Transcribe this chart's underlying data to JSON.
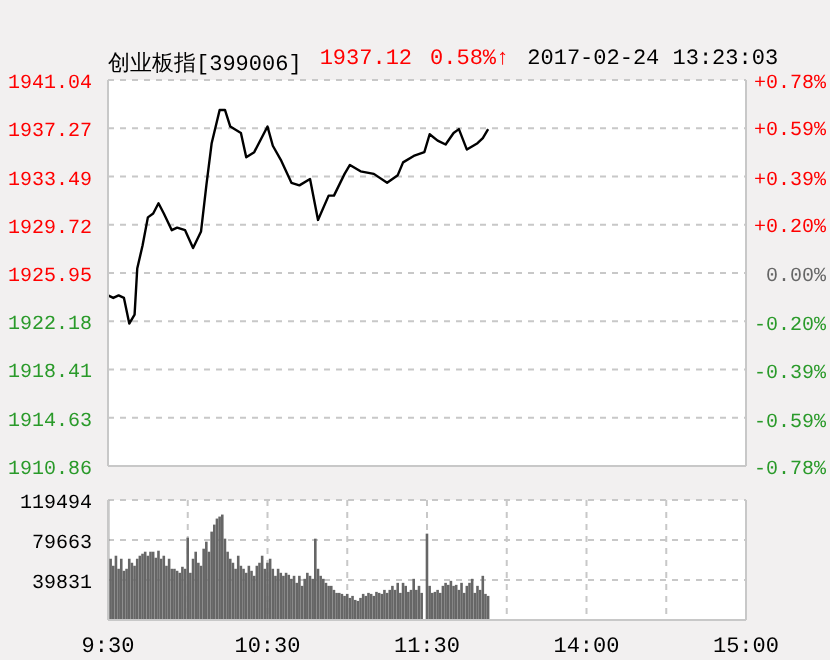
{
  "chart_data": [
    {
      "type": "line",
      "title": "创业板指[399006]",
      "annotations": [
        "1937.12",
        "0.58%↑",
        "2017-02-24 13:23:03"
      ],
      "categories": [
        null,
        null,
        null,
        null,
        null,
        null,
        null,
        null,
        null,
        null,
        null,
        null,
        null,
        null,
        null,
        null,
        null,
        null,
        null,
        null,
        null,
        null,
        null,
        null,
        null,
        null,
        null,
        null,
        null,
        null,
        null,
        null,
        null,
        null,
        null,
        null,
        null,
        null,
        null,
        null,
        null,
        null,
        null,
        null,
        null,
        null,
        null,
        null,
        null,
        null,
        null,
        null,
        null,
        null,
        null,
        null,
        null,
        null,
        null,
        null,
        null,
        null,
        null,
        null,
        null,
        null,
        null,
        null,
        null,
        null,
        null,
        null,
        null,
        null,
        null,
        null,
        null,
        null,
        null,
        null,
        null,
        null,
        null,
        null,
        null,
        null,
        null,
        null,
        null,
        null,
        null,
        null,
        null,
        null,
        null,
        null,
        null,
        null,
        null,
        null,
        null,
        null,
        null,
        null,
        null,
        null,
        null,
        null,
        null,
        null,
        null,
        null,
        null,
        null,
        null,
        null,
        null,
        null,
        null,
        null,
        null,
        null,
        null,
        null,
        null,
        null,
        null,
        null,
        null,
        null,
        null,
        null,
        null,
        null,
        null,
        null,
        null,
        null,
        null,
        null,
        null,
        null,
        null,
        null,
        null,
        null,
        null,
        null,
        null,
        null,
        null,
        null,
        null,
        null,
        null,
        null,
        null,
        null,
        null,
        null,
        null,
        null,
        null,
        null,
        null,
        null,
        null,
        null,
        null,
        null,
        null,
        null,
        null,
        null,
        null,
        null,
        null,
        null,
        null,
        null,
        null,
        null,
        null,
        null,
        null,
        null,
        null,
        null,
        null,
        null,
        null,
        null,
        null,
        null,
        null,
        null,
        null,
        null,
        null,
        null,
        null,
        null,
        null,
        null,
        null,
        null,
        null,
        null,
        null,
        null,
        null,
        null,
        null,
        null,
        null,
        null,
        null,
        null,
        null,
        null,
        null,
        null,
        null,
        null,
        null,
        null,
        null,
        null,
        null,
        null,
        null,
        null,
        null,
        null,
        null,
        null,
        null,
        null,
        null,
        null,
        null
      ],
      "series": [
        {
          "color": "#000000",
          "values": [
            1924.2,
            null,
            1924.0,
            null,
            1924.2,
            null,
            1924.0,
            null,
            1922.0,
            null,
            1922.7,
            1926.3,
            null,
            1928.1,
            null,
            1930.3,
            null,
            1930.6,
            null,
            1931.4,
            null,
            1930.6,
            null,
            null,
            1929.3,
            null,
            1929.5,
            null,
            null,
            1929.3,
            null,
            null,
            1927.9,
            null,
            null,
            1929.2,
            null,
            1932.8,
            null,
            1936.1,
            null,
            null,
            1938.7,
            null,
            1938.7,
            null,
            1937.4,
            null,
            null,
            null,
            1936.9,
            null,
            1935.0,
            null,
            null,
            1935.4,
            null,
            null,
            null,
            null,
            1937.4,
            null,
            1935.9,
            null,
            null,
            1934.8,
            null,
            null,
            null,
            1933.0,
            null,
            null,
            1932.8,
            null,
            null,
            null,
            1933.3,
            null,
            null,
            1930.1,
            null,
            null,
            null,
            1932.0,
            null,
            1932.0,
            null,
            null,
            null,
            1933.7,
            null,
            1934.4,
            null,
            null,
            null,
            1933.9,
            null,
            null,
            null,
            null,
            1933.7,
            null,
            null,
            null,
            null,
            1933.0,
            null,
            null,
            null,
            1933.6,
            null,
            1934.6,
            null,
            null,
            null,
            1935.1,
            null,
            null,
            null,
            1935.4,
            null,
            1936.8,
            null,
            null,
            1936.3,
            null,
            null,
            1936.0,
            null,
            null,
            1936.9,
            null,
            1937.2,
            null,
            null,
            1935.6,
            null,
            null,
            null,
            1936.1,
            null,
            1936.5,
            null,
            1937.2,
            null,
            null,
            null,
            null,
            null,
            null,
            null,
            null,
            null,
            null,
            null,
            null,
            null,
            null,
            null,
            null,
            null,
            null,
            null,
            null,
            null,
            null,
            null,
            null,
            null,
            null,
            null,
            null,
            null,
            null,
            null,
            null,
            null,
            null,
            null,
            null,
            null,
            null,
            null,
            null,
            null,
            null,
            null,
            null,
            null,
            null,
            null,
            null,
            null,
            null,
            null,
            null,
            null,
            null,
            null,
            null,
            null,
            null,
            null,
            null,
            null,
            null,
            null,
            null,
            null,
            null,
            null,
            null,
            null,
            null,
            null,
            null,
            null,
            null,
            null,
            null,
            null,
            null,
            null,
            null,
            null,
            null,
            null,
            null,
            null,
            null,
            null,
            null,
            null,
            null,
            null,
            null,
            null,
            null,
            null,
            null,
            null
          ]
        }
      ],
      "ylim": [
        1910.86,
        1941.04
      ],
      "yticks": [
        1910.86,
        1914.63,
        1918.41,
        1922.18,
        1925.95,
        1929.72,
        1933.49,
        1937.27,
        1941.04
      ],
      "y2lim": [
        -0.78,
        0.78
      ],
      "y2ticks": [
        {
          "value": -0.78,
          "label": "-0.78%"
        },
        {
          "value": -0.59,
          "label": "-0.59%"
        },
        {
          "value": -0.39,
          "label": "-0.39%"
        },
        {
          "value": -0.2,
          "label": "-0.20%"
        },
        {
          "value": 0,
          "label": "0.00%"
        },
        {
          "value": 0.2,
          "label": "+0.20%"
        },
        {
          "value": 0.39,
          "label": "+0.39%"
        },
        {
          "value": 0.59,
          "label": "+0.59%"
        },
        {
          "value": 0.78,
          "label": "+0.78%"
        }
      ],
      "grid": true,
      "tick_labels": "y",
      "line_style": "solid"
    },
    {
      "type": "bar",
      "categories": [
        "9:30",
        null,
        null,
        null,
        null,
        null,
        null,
        null,
        null,
        null,
        null,
        null,
        null,
        null,
        null,
        null,
        null,
        null,
        null,
        null,
        null,
        null,
        null,
        null,
        null,
        null,
        null,
        null,
        null,
        null,
        null,
        null,
        null,
        null,
        null,
        null,
        null,
        null,
        null,
        null,
        null,
        null,
        null,
        null,
        null,
        null,
        null,
        null,
        null,
        null,
        null,
        null,
        null,
        null,
        null,
        null,
        null,
        null,
        null,
        null,
        "10:30",
        null,
        null,
        null,
        null,
        null,
        null,
        null,
        null,
        null,
        null,
        null,
        null,
        null,
        null,
        null,
        null,
        null,
        null,
        null,
        null,
        null,
        null,
        null,
        null,
        null,
        null,
        null,
        null,
        null,
        null,
        null,
        null,
        null,
        null,
        null,
        null,
        null,
        null,
        null,
        null,
        null,
        null,
        null,
        null,
        null,
        null,
        null,
        null,
        null,
        null,
        null,
        null,
        null,
        null,
        null,
        null,
        null,
        null,
        null,
        "11:30",
        null,
        null,
        null,
        null,
        null,
        null,
        null,
        null,
        null,
        null,
        null,
        null,
        null,
        null,
        null,
        null,
        null,
        null,
        null,
        null,
        null,
        null,
        null,
        null,
        null,
        null,
        null,
        null,
        null,
        null,
        null,
        null,
        null,
        null,
        null,
        null,
        null,
        null,
        null,
        null,
        null,
        null,
        null,
        null,
        null,
        null,
        null,
        null,
        null,
        null,
        null,
        null,
        null,
        null,
        null,
        null,
        null,
        null,
        null,
        "14:00",
        null,
        null,
        null,
        null,
        null,
        null,
        null,
        null,
        null,
        null,
        null,
        null,
        null,
        null,
        null,
        null,
        null,
        null,
        null,
        null,
        null,
        null,
        null,
        null,
        null,
        null,
        null,
        null,
        null,
        null,
        null,
        null,
        null,
        null,
        null,
        null,
        null,
        null,
        null,
        null,
        null,
        null,
        null,
        null,
        null,
        null,
        null,
        null,
        null,
        null,
        null,
        null,
        null,
        null,
        null,
        null,
        null,
        null,
        null,
        "15:00"
      ],
      "series": [
        {
          "color": "#666666",
          "values": [
            119000,
            61000,
            54000,
            64000,
            51000,
            61000,
            49000,
            51000,
            61000,
            57000,
            54000,
            61000,
            64000,
            66000,
            68000,
            64000,
            68000,
            68000,
            62000,
            69000,
            61000,
            64000,
            54000,
            61000,
            51000,
            51000,
            49000,
            47000,
            53000,
            51000,
            82000,
            47000,
            61000,
            68000,
            57000,
            54000,
            71000,
            78000,
            68000,
            88000,
            95000,
            101000,
            103000,
            105000,
            81000,
            68000,
            61000,
            57000,
            51000,
            64000,
            54000,
            51000,
            47000,
            54000,
            49000,
            44000,
            54000,
            57000,
            64000,
            51000,
            57000,
            61000,
            51000,
            44000,
            51000,
            47000,
            44000,
            47000,
            45000,
            41000,
            44000,
            37000,
            44000,
            34000,
            41000,
            47000,
            44000,
            41000,
            81000,
            51000,
            44000,
            41000,
            37000,
            34000,
            34000,
            30000,
            27000,
            27000,
            26000,
            24000,
            26000,
            22000,
            24000,
            20000,
            19000,
            22000,
            26000,
            24000,
            27000,
            26000,
            24000,
            28000,
            27000,
            26000,
            30000,
            27000,
            30000,
            34000,
            30000,
            37000,
            27000,
            37000,
            34000,
            28000,
            30000,
            41000,
            30000,
            34000,
            27000,
            null,
            86000,
            34000,
            27000,
            28000,
            30000,
            27000,
            34000,
            37000,
            35000,
            39000,
            34000,
            35000,
            30000,
            37000,
            27000,
            34000,
            37000,
            41000,
            27000,
            34000,
            30000,
            44000,
            26000,
            24000,
            null,
            null,
            null,
            null,
            null,
            null,
            null,
            null,
            null,
            null,
            null,
            null,
            null,
            null,
            null,
            null,
            null,
            null,
            null,
            null,
            null,
            null,
            null,
            null,
            null,
            null,
            null,
            null,
            null,
            null,
            null,
            null,
            null,
            null,
            null,
            null,
            null,
            null,
            null,
            null,
            null,
            null,
            null,
            null,
            null,
            null,
            null,
            null,
            null,
            null,
            null,
            null,
            null,
            null,
            null,
            null,
            null,
            null,
            null,
            null,
            null,
            null,
            null,
            null,
            null,
            null,
            null,
            null,
            null,
            null,
            null,
            null,
            null,
            null,
            null,
            null,
            null,
            null,
            null,
            null,
            null,
            null,
            null,
            null,
            null,
            null,
            null,
            null,
            null,
            null,
            null,
            null,
            null,
            null,
            null,
            null,
            null
          ]
        }
      ],
      "ylim": [
        0,
        119494
      ],
      "yticks": [
        39831,
        79663,
        119494
      ],
      "grid": true
    }
  ]
}
